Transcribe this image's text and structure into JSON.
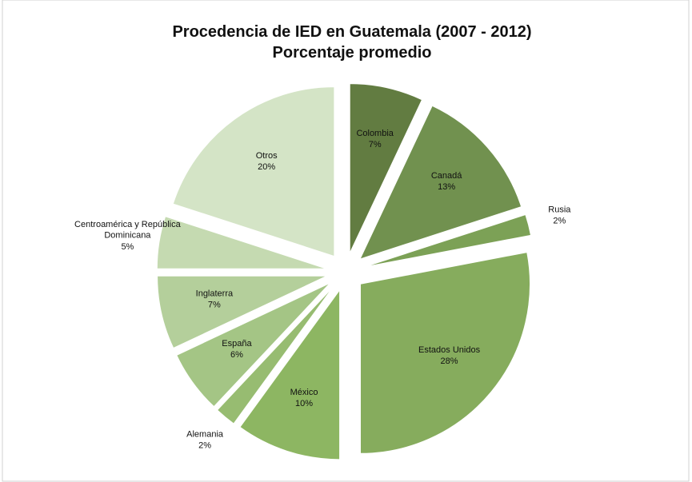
{
  "chart_data": {
    "type": "pie",
    "title": "Procedencia de IED en Guatemala (2007 - 2012)",
    "subtitle": "Porcentaje promedio",
    "categories": [
      "Colombia",
      "Canadá",
      "Rusia",
      "Estados Unidos",
      "México",
      "Alemania",
      "España",
      "Inglaterra",
      "Centroamérica y República Dominicana",
      "Otros"
    ],
    "values": [
      7,
      13,
      2,
      28,
      10,
      2,
      6,
      7,
      5,
      20
    ],
    "value_labels": [
      "7%",
      "13%",
      "2%",
      "28%",
      "10%",
      "2%",
      "6%",
      "7%",
      "5%",
      "20%"
    ],
    "colors": [
      "#627c41",
      "#71914f",
      "#7ca156",
      "#86ac5d",
      "#8db662",
      "#97bc71",
      "#a4c585",
      "#b4cf9b",
      "#c5dab1",
      "#d4e4c6"
    ]
  }
}
